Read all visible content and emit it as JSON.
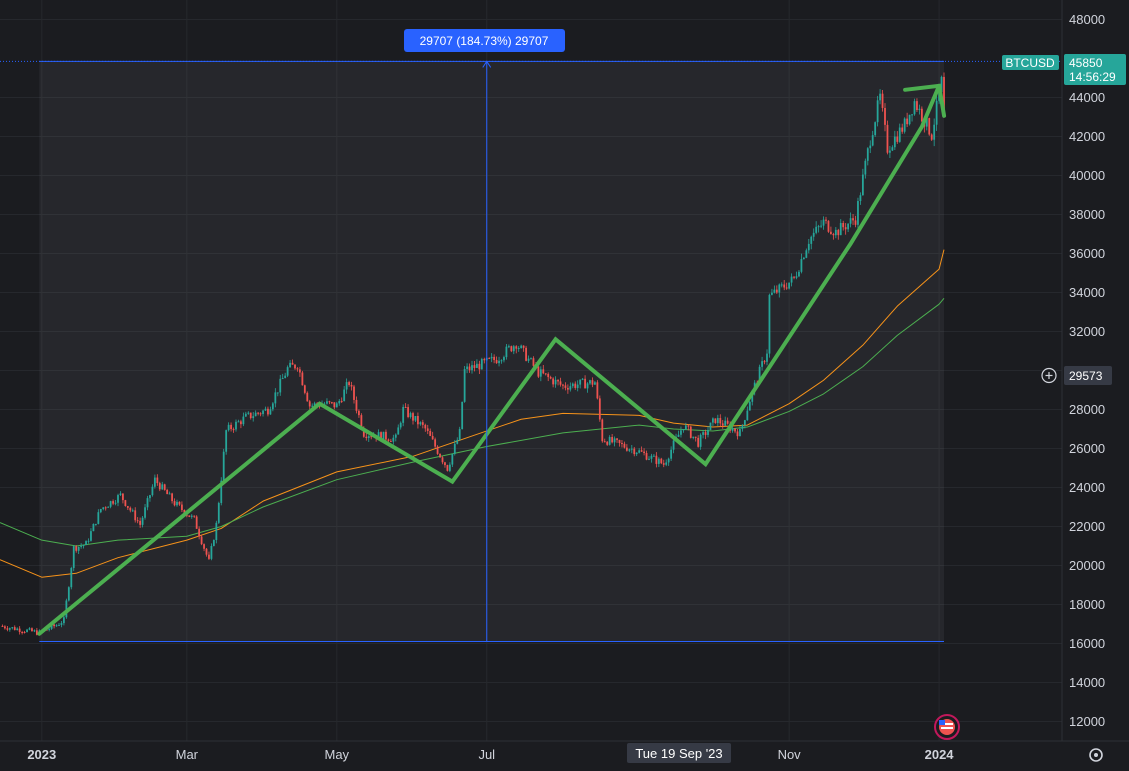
{
  "chart_data": {
    "type": "candlestick",
    "symbol": "BTCUSD",
    "last_price": "45850",
    "countdown": "14:56:29",
    "crosshair_price": "29573",
    "crosshair_date": "Tue 19 Sep '23",
    "measure_label": "29707 (184.73%) 29707",
    "y_ticks": [
      "48000",
      "44000",
      "42000",
      "40000",
      "38000",
      "36000",
      "34000",
      "32000",
      "30000",
      "28000",
      "26000",
      "24000",
      "22000",
      "20000",
      "18000",
      "16000",
      "14000",
      "12000"
    ],
    "x_ticks": [
      {
        "label": "2023",
        "date": "2023-01-01",
        "bold": true
      },
      {
        "label": "Mar",
        "date": "2023-03-01",
        "bold": false
      },
      {
        "label": "May",
        "date": "2023-05-01",
        "bold": false
      },
      {
        "label": "Jul",
        "date": "2023-07-01",
        "bold": false
      },
      {
        "label": "Nov",
        "date": "2023-11-01",
        "bold": false
      },
      {
        "label": "2024",
        "date": "2024-01-01",
        "bold": true
      }
    ],
    "ylim": [
      11000,
      49000
    ],
    "xlim": [
      "2022-12-15",
      "2024-02-20"
    ],
    "anchors": [
      [
        "2022-12-15",
        16900
      ],
      [
        "2022-12-31",
        16550
      ],
      [
        "2023-01-07",
        16950
      ],
      [
        "2023-01-10",
        17200
      ],
      [
        "2023-01-14",
        20900
      ],
      [
        "2023-01-19",
        21100
      ],
      [
        "2023-01-25",
        22900
      ],
      [
        "2023-02-02",
        23600
      ],
      [
        "2023-02-10",
        22100
      ],
      [
        "2023-02-16",
        24400
      ],
      [
        "2023-02-24",
        23200
      ],
      [
        "2023-03-04",
        22350
      ],
      [
        "2023-03-10",
        20200
      ],
      [
        "2023-03-13",
        22100
      ],
      [
        "2023-03-17",
        26900
      ],
      [
        "2023-03-25",
        27600
      ],
      [
        "2023-04-03",
        28000
      ],
      [
        "2023-04-11",
        30100
      ],
      [
        "2023-04-15",
        30300
      ],
      [
        "2023-04-20",
        28200
      ],
      [
        "2023-04-26",
        28300
      ],
      [
        "2023-05-01",
        28200
      ],
      [
        "2023-05-06",
        29400
      ],
      [
        "2023-05-12",
        26800
      ],
      [
        "2023-05-25",
        26500
      ],
      [
        "2023-05-28",
        28000
      ],
      [
        "2023-06-06",
        27000
      ],
      [
        "2023-06-15",
        25000
      ],
      [
        "2023-06-20",
        26800
      ],
      [
        "2023-06-22",
        30000
      ],
      [
        "2023-07-05",
        30600
      ],
      [
        "2023-07-13",
        31400
      ],
      [
        "2023-07-22",
        29900
      ],
      [
        "2023-08-01",
        29200
      ],
      [
        "2023-08-14",
        29400
      ],
      [
        "2023-08-17",
        26500
      ],
      [
        "2023-08-31",
        25900
      ],
      [
        "2023-09-11",
        25200
      ],
      [
        "2023-09-19",
        27200
      ],
      [
        "2023-09-25",
        26300
      ],
      [
        "2023-10-02",
        27500
      ],
      [
        "2023-10-12",
        26800
      ],
      [
        "2023-10-16",
        28500
      ],
      [
        "2023-10-23",
        31000
      ],
      [
        "2023-10-24",
        33800
      ],
      [
        "2023-11-03",
        34700
      ],
      [
        "2023-11-09",
        36700
      ],
      [
        "2023-11-15",
        37600
      ],
      [
        "2023-11-20",
        37100
      ],
      [
        "2023-11-28",
        37800
      ],
      [
        "2023-12-04",
        41900
      ],
      [
        "2023-12-08",
        44000
      ],
      [
        "2023-12-11",
        41400
      ],
      [
        "2023-12-18",
        42600
      ],
      [
        "2023-12-22",
        43800
      ],
      [
        "2023-12-29",
        42100
      ],
      [
        "2024-01-02",
        44800
      ],
      [
        "2024-01-03",
        42800
      ]
    ],
    "ma_orange": [
      [
        "2022-12-15",
        20300
      ],
      [
        "2023-01-01",
        19400
      ],
      [
        "2023-01-15",
        19600
      ],
      [
        "2023-02-01",
        20400
      ],
      [
        "2023-03-01",
        21300
      ],
      [
        "2023-03-15",
        21900
      ],
      [
        "2023-04-01",
        23300
      ],
      [
        "2023-05-01",
        24800
      ],
      [
        "2023-06-01",
        25600
      ],
      [
        "2023-07-01",
        26900
      ],
      [
        "2023-07-15",
        27500
      ],
      [
        "2023-08-01",
        27800
      ],
      [
        "2023-09-01",
        27700
      ],
      [
        "2023-09-15",
        27300
      ],
      [
        "2023-10-01",
        27100
      ],
      [
        "2023-10-15",
        27200
      ],
      [
        "2023-11-01",
        28300
      ],
      [
        "2023-11-15",
        29500
      ],
      [
        "2023-12-01",
        31300
      ],
      [
        "2023-12-15",
        33300
      ],
      [
        "2024-01-01",
        35200
      ],
      [
        "2024-01-03",
        36200
      ]
    ],
    "ma_green": [
      [
        "2022-12-15",
        22200
      ],
      [
        "2023-01-01",
        21300
      ],
      [
        "2023-01-15",
        21000
      ],
      [
        "2023-02-01",
        21300
      ],
      [
        "2023-03-01",
        21500
      ],
      [
        "2023-03-15",
        22000
      ],
      [
        "2023-04-01",
        23000
      ],
      [
        "2023-05-01",
        24400
      ],
      [
        "2023-06-01",
        25300
      ],
      [
        "2023-07-01",
        26100
      ],
      [
        "2023-08-01",
        26800
      ],
      [
        "2023-09-01",
        27200
      ],
      [
        "2023-09-15",
        27000
      ],
      [
        "2023-10-01",
        26900
      ],
      [
        "2023-10-15",
        27100
      ],
      [
        "2023-11-01",
        27900
      ],
      [
        "2023-11-15",
        28800
      ],
      [
        "2023-12-01",
        30200
      ],
      [
        "2023-12-15",
        31800
      ],
      [
        "2024-01-01",
        33400
      ],
      [
        "2024-01-03",
        33700
      ]
    ],
    "trend_line": [
      [
        "2022-12-31",
        16500
      ],
      [
        "2023-04-24",
        28300
      ],
      [
        "2023-06-17",
        24300
      ],
      [
        "2023-07-29",
        31600
      ],
      [
        "2023-09-28",
        25200
      ],
      [
        "2023-11-26",
        36500
      ],
      [
        "2023-12-25",
        42500
      ],
      [
        "2024-01-01",
        44600
      ]
    ],
    "measure_box": {
      "x_start": "2022-12-31",
      "x_end": "2024-01-03",
      "y_low": 16100,
      "y_high": 45850,
      "x_mid": "2023-07-01"
    },
    "colors": {
      "up": "#26a69a",
      "down": "#ef5350",
      "trend": "#4caf50",
      "ma_orange": "#f7931a",
      "ma_green": "#4caf50",
      "measure": "#2962ff",
      "background": "#1b1c20",
      "axis_text": "#d1d4dc"
    }
  }
}
